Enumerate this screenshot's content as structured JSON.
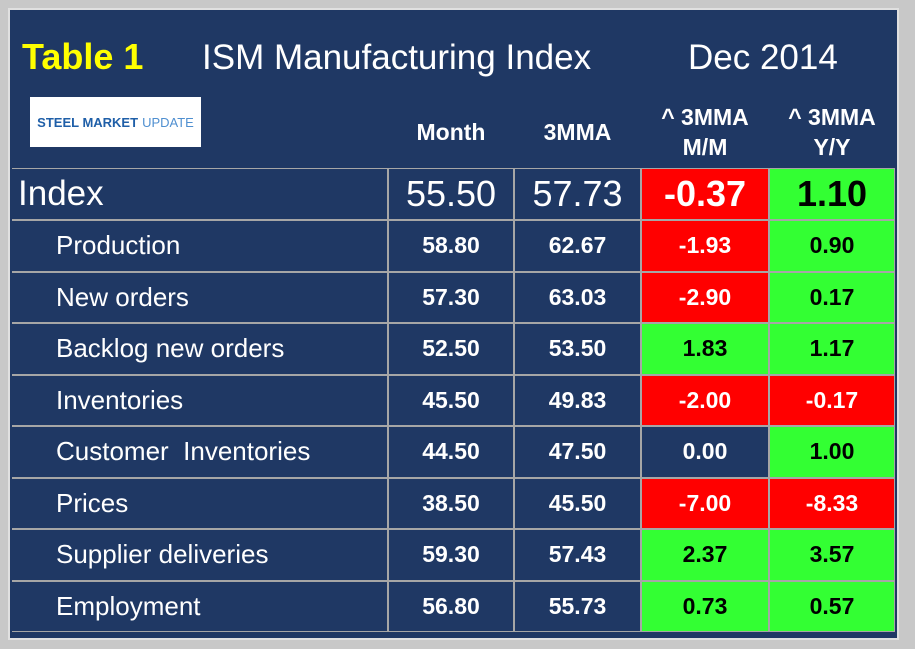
{
  "header": {
    "tag": "Table 1",
    "title": "ISM Manufacturing Index",
    "date": "Dec 2014"
  },
  "logo": {
    "bold": "STEEL MARKET",
    "light": "UPDATE"
  },
  "table": {
    "columns": [
      [
        "Month"
      ],
      [
        "3MMA"
      ],
      [
        "^ 3MMA",
        "M/M"
      ],
      [
        "^ 3MMA",
        "Y/Y"
      ]
    ],
    "rows": [
      [
        "Index",
        "55.50",
        "57.73",
        "-0.37",
        "1.10"
      ],
      [
        "Production",
        "58.80",
        "62.67",
        "-1.93",
        "0.90"
      ],
      [
        "New orders",
        "57.30",
        "63.03",
        "-2.90",
        "0.17"
      ],
      [
        "Backlog new orders",
        "52.50",
        "53.50",
        "1.83",
        "1.17"
      ],
      [
        "Inventories",
        "45.50",
        "49.83",
        "-2.00",
        "-0.17"
      ],
      [
        "Customer  Inventories",
        "44.50",
        "47.50",
        "0.00",
        "1.00"
      ],
      [
        "Prices",
        "38.50",
        "45.50",
        "-7.00",
        "-8.33"
      ],
      [
        "Supplier deliveries",
        "59.30",
        "57.43",
        "2.37",
        "3.57"
      ],
      [
        "Employment",
        "56.80",
        "55.73",
        "0.73",
        "0.57"
      ]
    ],
    "cell_colors": [
      [
        "#ff0000",
        "#33ff33"
      ],
      [
        "#ff0000",
        "#33ff33"
      ],
      [
        "#ff0000",
        "#33ff33"
      ],
      [
        "#33ff33",
        "#33ff33"
      ],
      [
        "#ff0000",
        "#ff0000"
      ],
      [
        "#1f3864",
        "#33ff33"
      ],
      [
        "#ff0000",
        "#ff0000"
      ],
      [
        "#33ff33",
        "#33ff33"
      ],
      [
        "#33ff33",
        "#33ff33"
      ]
    ]
  }
}
